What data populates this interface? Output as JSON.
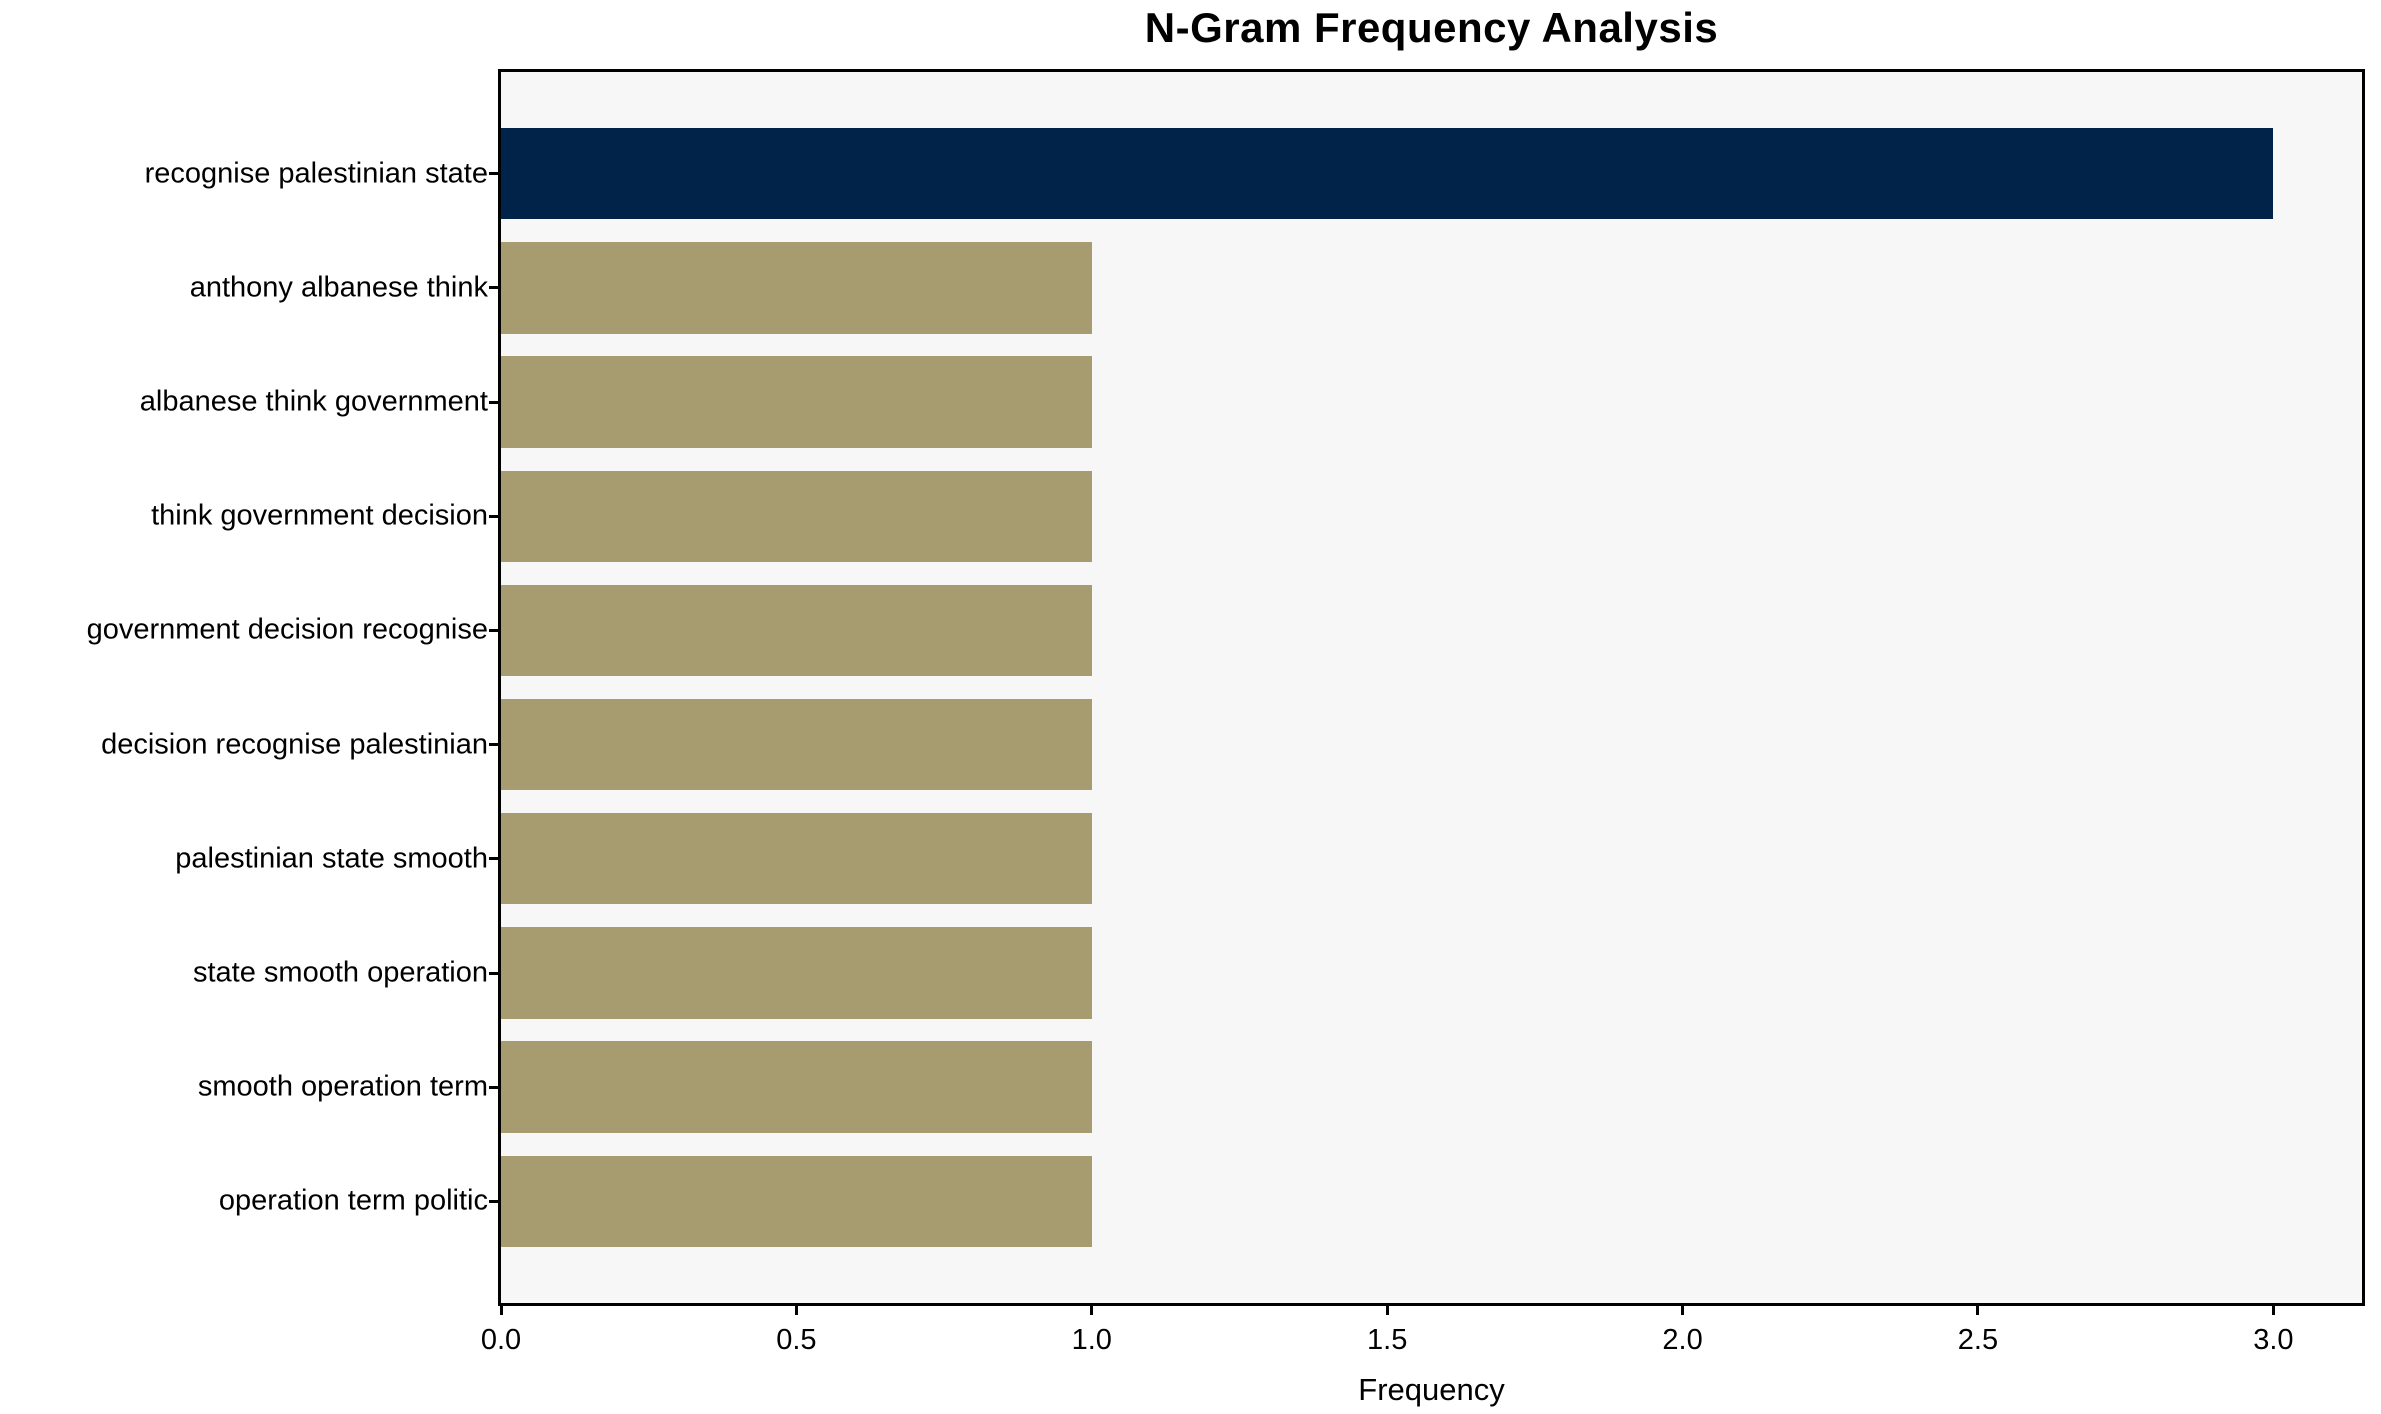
{
  "chart_data": {
    "type": "bar",
    "orientation": "horizontal",
    "title": "N-Gram Frequency Analysis",
    "xlabel": "Frequency",
    "ylabel": "",
    "categories": [
      "recognise palestinian state",
      "anthony albanese think",
      "albanese think government",
      "think government decision",
      "government decision recognise",
      "decision recognise palestinian",
      "palestinian state smooth",
      "state smooth operation",
      "smooth operation term",
      "operation term politic"
    ],
    "values": [
      3,
      1,
      1,
      1,
      1,
      1,
      1,
      1,
      1,
      1
    ],
    "xlim": [
      0,
      3.15
    ],
    "xtick_values": [
      0.0,
      0.5,
      1.0,
      1.5,
      2.0,
      2.5,
      3.0
    ],
    "xtick_labels": [
      "0.0",
      "0.5",
      "1.0",
      "1.5",
      "2.0",
      "2.5",
      "3.0"
    ],
    "grid": false,
    "legend": null,
    "bar_height_fraction": 0.8,
    "highlight_index": 0,
    "colors": {
      "highlight_bar": "#01234a",
      "default_bar": "#a69c70",
      "plot_background": "#f7f7f7",
      "figure_background": "#ffffff",
      "axis": "#000000",
      "text": "#000000"
    }
  }
}
